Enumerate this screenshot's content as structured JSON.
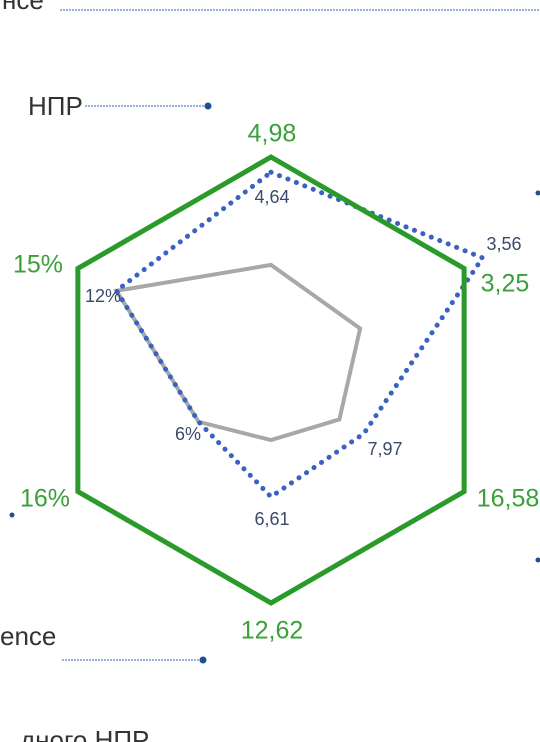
{
  "chart_data": {
    "type": "radar",
    "annotations": [
      "нсе",
      "НПР",
      "ence",
      "дного НПР"
    ],
    "series": [
      {
        "color": "#2a9a2a",
        "values": [
          4.98,
          3.25,
          16.58,
          12.62,
          16,
          15
        ],
        "value_labels": [
          "4,98",
          "3,25",
          "16,58",
          "12,62",
          "16%",
          "15%"
        ]
      },
      {
        "color": "#3a62c0",
        "values": [
          4.64,
          3.56,
          7.97,
          6.61,
          6,
          12
        ],
        "value_labels": [
          "4,64",
          "3,56",
          "7,97",
          "6,61",
          "6%",
          "12%"
        ]
      },
      {
        "color": "#a8a8a8",
        "values": [
          2.57,
          1.5,
          5.87,
          3.4,
          6,
          12
        ]
      }
    ]
  }
}
